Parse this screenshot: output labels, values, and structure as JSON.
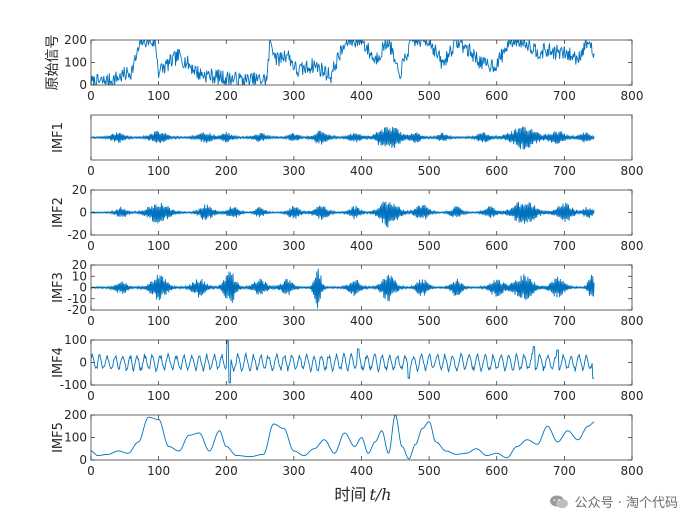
{
  "figure": {
    "xlabel": "时间",
    "xlabel_var": "t/h"
  },
  "watermark": {
    "text": "公众号 · 淘个代码"
  },
  "chart_data": [
    {
      "type": "line",
      "ylabel": "原始信号",
      "xlim": [
        0,
        800
      ],
      "ylim": [
        0,
        200
      ],
      "xticks": [
        0,
        100,
        200,
        300,
        400,
        500,
        600,
        700,
        800
      ],
      "yticks": [
        0,
        100,
        200
      ],
      "length": 745,
      "color": "#0072BD",
      "kind": "raw",
      "x": [
        0,
        30,
        60,
        75,
        80,
        95,
        100,
        130,
        160,
        200,
        230,
        260,
        265,
        275,
        290,
        305,
        330,
        355,
        365,
        380,
        400,
        420,
        440,
        455,
        475,
        500,
        520,
        540,
        560,
        580,
        600,
        620,
        640,
        660,
        680,
        700,
        720,
        735,
        745
      ],
      "values": [
        10,
        20,
        60,
        200,
        200,
        190,
        60,
        130,
        50,
        30,
        20,
        25,
        200,
        110,
        140,
        60,
        90,
        40,
        120,
        200,
        200,
        110,
        200,
        40,
        200,
        200,
        90,
        200,
        150,
        90,
        90,
        200,
        200,
        150,
        150,
        140,
        120,
        200,
        120
      ]
    },
    {
      "type": "line",
      "ylabel": "IMF1",
      "xlim": [
        0,
        800
      ],
      "ylim": [
        -100,
        100
      ],
      "xticks": [
        0,
        100,
        200,
        300,
        400,
        500,
        600,
        700,
        800
      ],
      "yticks": [],
      "length": 745,
      "color": "#0072BD",
      "kind": "osc",
      "amp": 60,
      "base": 4,
      "bursts": [
        [
          40,
          12
        ],
        [
          100,
          14
        ],
        [
          170,
          14
        ],
        [
          200,
          10
        ],
        [
          250,
          10
        ],
        [
          300,
          8
        ],
        [
          340,
          12
        ],
        [
          390,
          10
        ],
        [
          440,
          18
        ],
        [
          480,
          10
        ],
        [
          520,
          8
        ],
        [
          580,
          10
        ],
        [
          640,
          22
        ],
        [
          690,
          14
        ],
        [
          730,
          10
        ]
      ],
      "burst_amp": [
        0.35,
        0.45,
        0.35,
        0.35,
        0.3,
        0.3,
        0.5,
        0.35,
        1.0,
        0.35,
        0.3,
        0.35,
        0.85,
        0.45,
        0.35
      ],
      "freq": 0.9,
      "seed": 11
    },
    {
      "type": "line",
      "ylabel": "IMF2",
      "xlim": [
        0,
        800
      ],
      "ylim": [
        -20,
        20
      ],
      "xticks": [
        0,
        100,
        200,
        300,
        400,
        500,
        600,
        700,
        800
      ],
      "yticks": [
        -20,
        0,
        20
      ],
      "length": 745,
      "color": "#0072BD",
      "kind": "osc",
      "amp": 13,
      "base": 0.6,
      "bursts": [
        [
          45,
          10
        ],
        [
          100,
          18
        ],
        [
          170,
          12
        ],
        [
          210,
          10
        ],
        [
          250,
          8
        ],
        [
          300,
          10
        ],
        [
          340,
          12
        ],
        [
          390,
          10
        ],
        [
          440,
          16
        ],
        [
          490,
          12
        ],
        [
          540,
          10
        ],
        [
          590,
          10
        ],
        [
          640,
          20
        ],
        [
          700,
          14
        ],
        [
          735,
          8
        ]
      ],
      "burst_amp": [
        0.35,
        0.75,
        0.55,
        0.5,
        0.35,
        0.45,
        0.55,
        0.45,
        1.0,
        0.55,
        0.4,
        0.4,
        0.85,
        0.65,
        0.4
      ],
      "freq": 0.6,
      "seed": 23
    },
    {
      "type": "line",
      "ylabel": "IMF3",
      "xlim": [
        0,
        800
      ],
      "ylim": [
        -20,
        20
      ],
      "xticks": [
        0,
        100,
        200,
        300,
        400,
        500,
        600,
        700,
        800
      ],
      "yticks": [
        -20,
        -10,
        0,
        10,
        20
      ],
      "length": 745,
      "color": "#0072BD",
      "kind": "osc",
      "amp": 16,
      "base": 0.8,
      "bursts": [
        [
          45,
          10
        ],
        [
          100,
          14
        ],
        [
          160,
          12
        ],
        [
          205,
          10
        ],
        [
          250,
          12
        ],
        [
          290,
          10
        ],
        [
          335,
          6
        ],
        [
          390,
          10
        ],
        [
          440,
          12
        ],
        [
          490,
          10
        ],
        [
          540,
          10
        ],
        [
          600,
          12
        ],
        [
          640,
          16
        ],
        [
          690,
          12
        ],
        [
          740,
          6
        ]
      ],
      "burst_amp": [
        0.35,
        0.7,
        0.5,
        0.95,
        0.45,
        0.45,
        1.25,
        0.45,
        0.75,
        0.5,
        0.45,
        0.5,
        0.7,
        0.55,
        0.7
      ],
      "freq": 0.35,
      "seed": 37
    },
    {
      "type": "line",
      "ylabel": "IMF4",
      "xlim": [
        0,
        800
      ],
      "ylim": [
        -100,
        100
      ],
      "xticks": [
        0,
        100,
        200,
        300,
        400,
        500,
        600,
        700,
        800
      ],
      "yticks": [
        -100,
        0,
        100
      ],
      "length": 745,
      "color": "#0072BD",
      "kind": "wave",
      "amp": 38,
      "spikes": [
        [
          202,
          95
        ],
        [
          205,
          -90
        ],
        [
          395,
          60
        ],
        [
          470,
          -70
        ],
        [
          655,
          70
        ],
        [
          690,
          55
        ],
        [
          743,
          -70
        ]
      ],
      "freq": 0.55,
      "seed": 51
    },
    {
      "type": "line",
      "ylabel": "IMF5",
      "xlim": [
        0,
        800
      ],
      "ylim": [
        0,
        200
      ],
      "xticks": [
        0,
        100,
        200,
        300,
        400,
        500,
        600,
        700,
        800
      ],
      "yticks": [
        0,
        100,
        200
      ],
      "length": 745,
      "color": "#0072BD",
      "kind": "smooth",
      "x": [
        0,
        10,
        25,
        40,
        55,
        70,
        85,
        100,
        115,
        130,
        145,
        160,
        175,
        190,
        200,
        215,
        235,
        255,
        270,
        285,
        300,
        315,
        330,
        345,
        360,
        375,
        390,
        400,
        410,
        420,
        430,
        440,
        450,
        460,
        470,
        480,
        490,
        500,
        510,
        525,
        540,
        555,
        570,
        585,
        600,
        615,
        630,
        645,
        660,
        675,
        690,
        705,
        720,
        735,
        745
      ],
      "values": [
        40,
        20,
        25,
        40,
        30,
        80,
        190,
        180,
        60,
        40,
        110,
        120,
        40,
        130,
        60,
        20,
        15,
        25,
        160,
        140,
        40,
        20,
        50,
        90,
        30,
        120,
        60,
        100,
        30,
        80,
        130,
        30,
        200,
        60,
        5,
        70,
        140,
        170,
        80,
        40,
        25,
        30,
        50,
        20,
        30,
        10,
        60,
        90,
        70,
        150,
        80,
        130,
        90,
        150,
        170
      ]
    }
  ]
}
